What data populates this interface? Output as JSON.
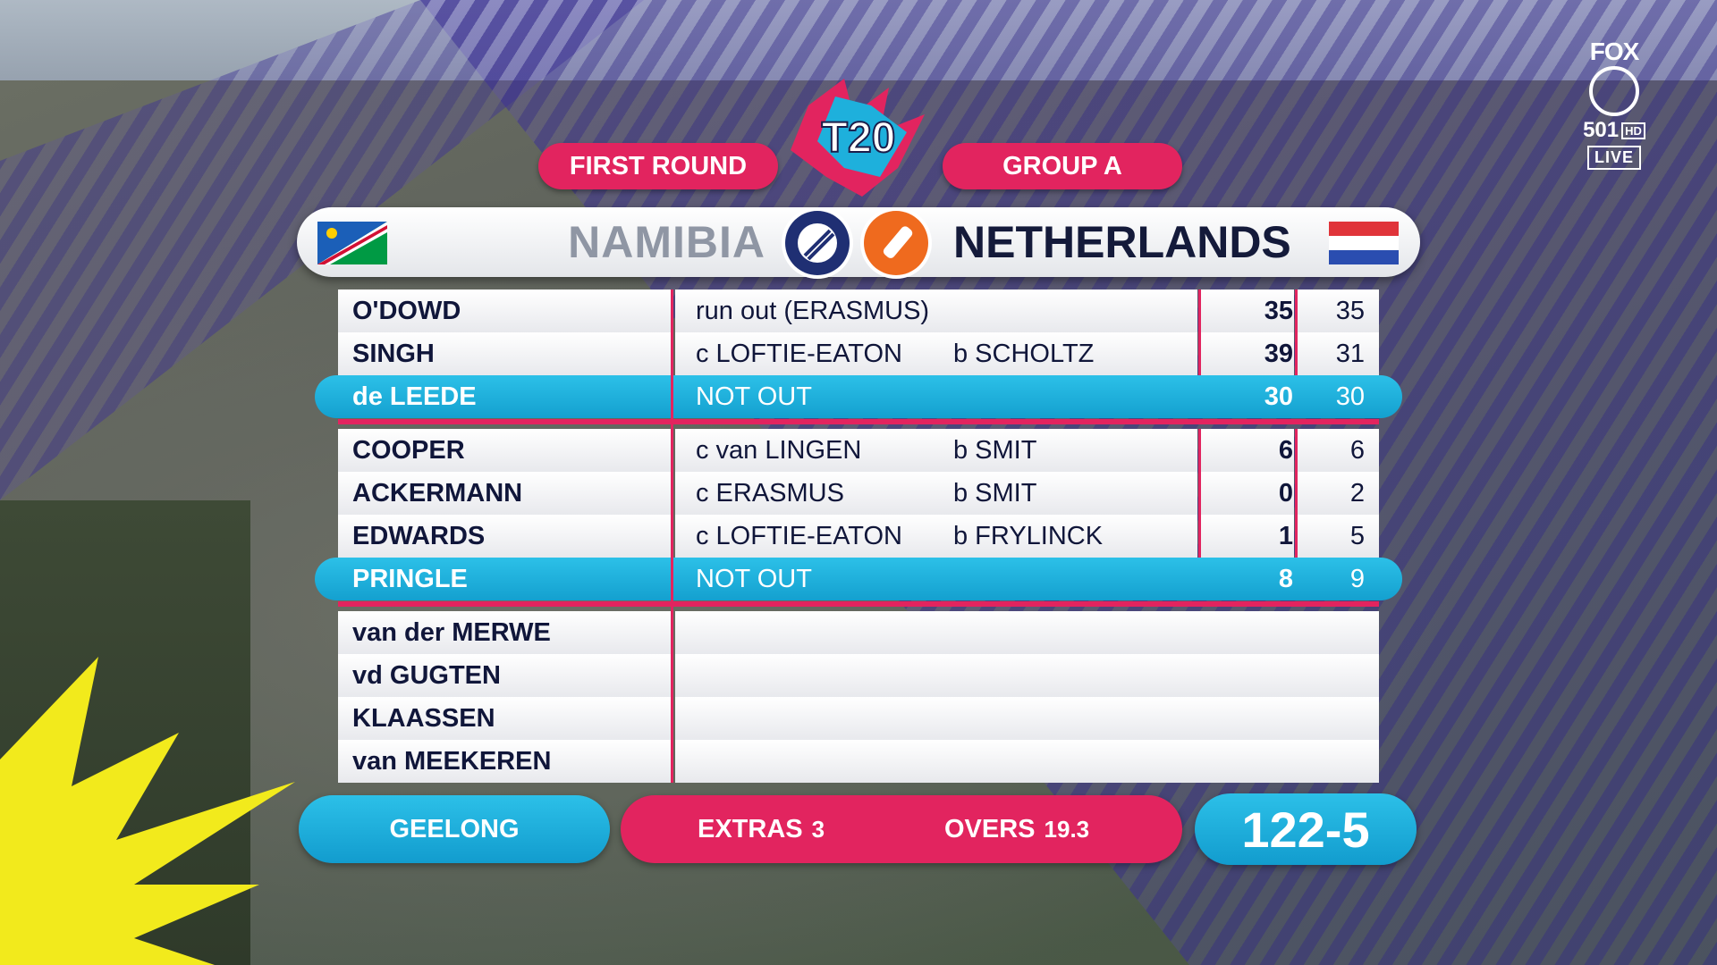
{
  "header": {
    "round": "FIRST ROUND",
    "group": "GROUP A",
    "logo_text": "T20"
  },
  "broadcaster": {
    "brand": "FOX",
    "channel": "501",
    "quality": "HD",
    "status": "LIVE"
  },
  "teams": {
    "batting_against": "NAMIBIA",
    "batting": "NETHERLANDS"
  },
  "batters": [
    {
      "name": "O'DOWD",
      "how_out": "run out (ERASMUS)",
      "bowler": "",
      "runs": "35",
      "balls": "35",
      "not_out": false
    },
    {
      "name": "SINGH",
      "how_out": "c LOFTIE-EATON",
      "bowler": "b SCHOLTZ",
      "runs": "39",
      "balls": "31",
      "not_out": false
    },
    {
      "name": "de LEEDE",
      "how_out": "NOT OUT",
      "bowler": "",
      "runs": "30",
      "balls": "30",
      "not_out": true
    },
    {
      "name": "COOPER",
      "how_out": "c van LINGEN",
      "bowler": "b SMIT",
      "runs": "6",
      "balls": "6",
      "not_out": false
    },
    {
      "name": "ACKERMANN",
      "how_out": "c ERASMUS",
      "bowler": "b SMIT",
      "runs": "0",
      "balls": "2",
      "not_out": false
    },
    {
      "name": "EDWARDS",
      "how_out": "c LOFTIE-EATON",
      "bowler": "b FRYLINCK",
      "runs": "1",
      "balls": "5",
      "not_out": false
    },
    {
      "name": "PRINGLE",
      "how_out": "NOT OUT",
      "bowler": "",
      "runs": "8",
      "balls": "9",
      "not_out": true
    },
    {
      "name": "van der MERWE",
      "how_out": "",
      "bowler": "",
      "runs": "",
      "balls": "",
      "not_out": false
    },
    {
      "name": "vd GUGTEN",
      "how_out": "",
      "bowler": "",
      "runs": "",
      "balls": "",
      "not_out": false
    },
    {
      "name": "KLAASSEN",
      "how_out": "",
      "bowler": "",
      "runs": "",
      "balls": "",
      "not_out": false
    },
    {
      "name": "van MEEKEREN",
      "how_out": "",
      "bowler": "",
      "runs": "",
      "balls": "",
      "not_out": false
    }
  ],
  "footer": {
    "venue": "GEELONG",
    "extras_label": "EXTRAS",
    "extras_value": "3",
    "overs_label": "OVERS",
    "overs_value": "19.3",
    "total": "122-5"
  },
  "colors": {
    "accent_pink": "#e2245f",
    "accent_cyan": "#1eb0dc",
    "navy_text": "#10163a"
  }
}
